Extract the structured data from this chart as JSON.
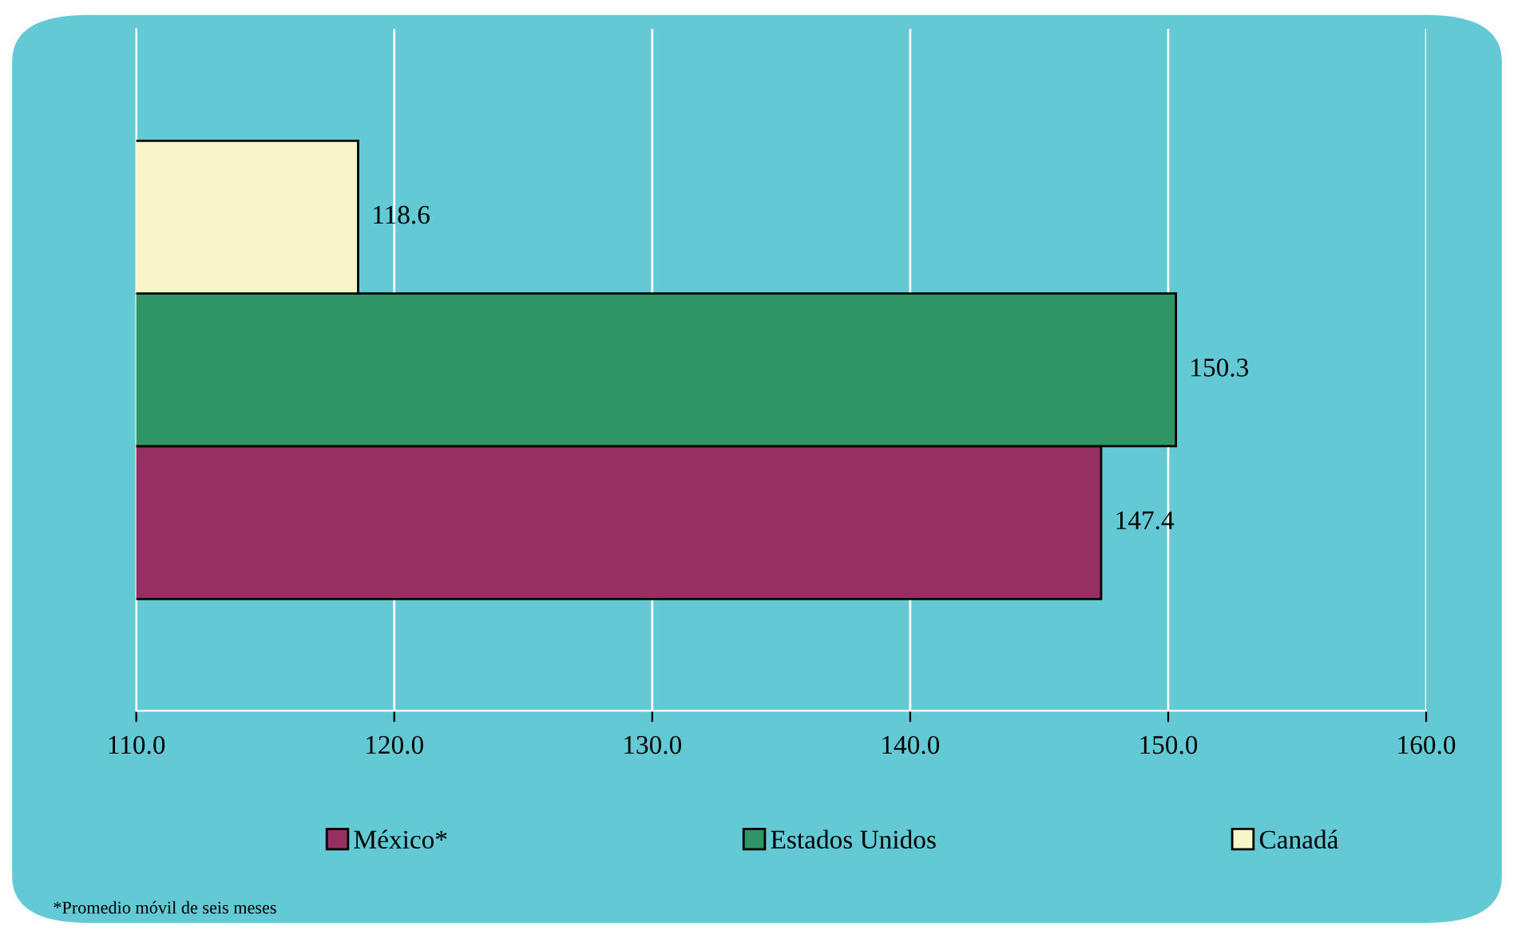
{
  "chart_data": {
    "type": "bar",
    "orientation": "horizontal",
    "categories": [
      null
    ],
    "series": [
      {
        "name": "México*",
        "color": "#962f62",
        "values": [
          147.4
        ]
      },
      {
        "name": "Estados Unidos",
        "color": "#2f9466",
        "values": [
          150.3
        ]
      },
      {
        "name": "Canadá",
        "color": "#f8f6c8",
        "values": [
          118.6
        ]
      }
    ],
    "xlim": [
      110,
      160
    ],
    "xticks": [
      {
        "value": 110,
        "label": "110.0"
      },
      {
        "value": 120,
        "label": "120.0"
      },
      {
        "value": 130,
        "label": "130.0"
      },
      {
        "value": 140,
        "label": "140.0"
      },
      {
        "value": 150,
        "label": "150.0"
      },
      {
        "value": 160,
        "label": "160.0"
      }
    ],
    "grid": "x",
    "legend": "bottom",
    "data_labels": true,
    "tick_labels": "x",
    "annotations": [
      "*Promedio móvil de seis meses"
    ]
  }
}
